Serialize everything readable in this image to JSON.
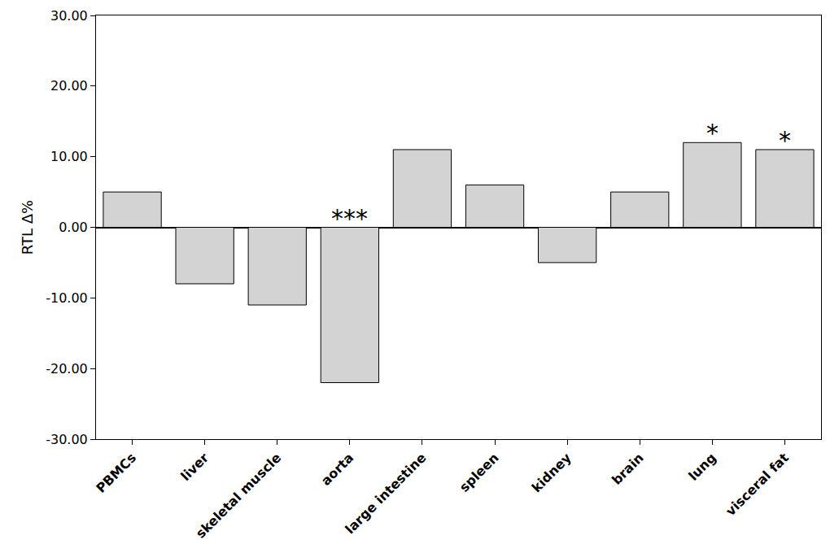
{
  "chart_data": {
    "type": "bar",
    "y_label": "RTL Δ%",
    "categories": [
      "PBMCs",
      "liver",
      "skeletal muscle",
      "aorta",
      "large intestine",
      "spleen",
      "kidney",
      "brain",
      "lung",
      "visceral fat"
    ],
    "values": [
      5,
      -8,
      -11,
      -22,
      11,
      6,
      -5,
      5,
      12,
      11
    ],
    "color": "#d3d3d3",
    "ylim": [
      -30,
      30
    ],
    "yticks": [
      {
        "value": -30,
        "label": "-30.00"
      },
      {
        "value": -20,
        "label": "-20.00"
      },
      {
        "value": -10,
        "label": "-10.00"
      },
      {
        "value": 0,
        "label": "0.00"
      },
      {
        "value": 10,
        "label": "10.00"
      },
      {
        "value": 20,
        "label": "20.00"
      },
      {
        "value": 30,
        "label": "30.00"
      }
    ],
    "grid": false,
    "annotations": [
      {
        "category": "aorta",
        "text": "***"
      },
      {
        "category": "lung",
        "text": "*"
      },
      {
        "category": "visceral fat",
        "text": "*"
      }
    ]
  }
}
